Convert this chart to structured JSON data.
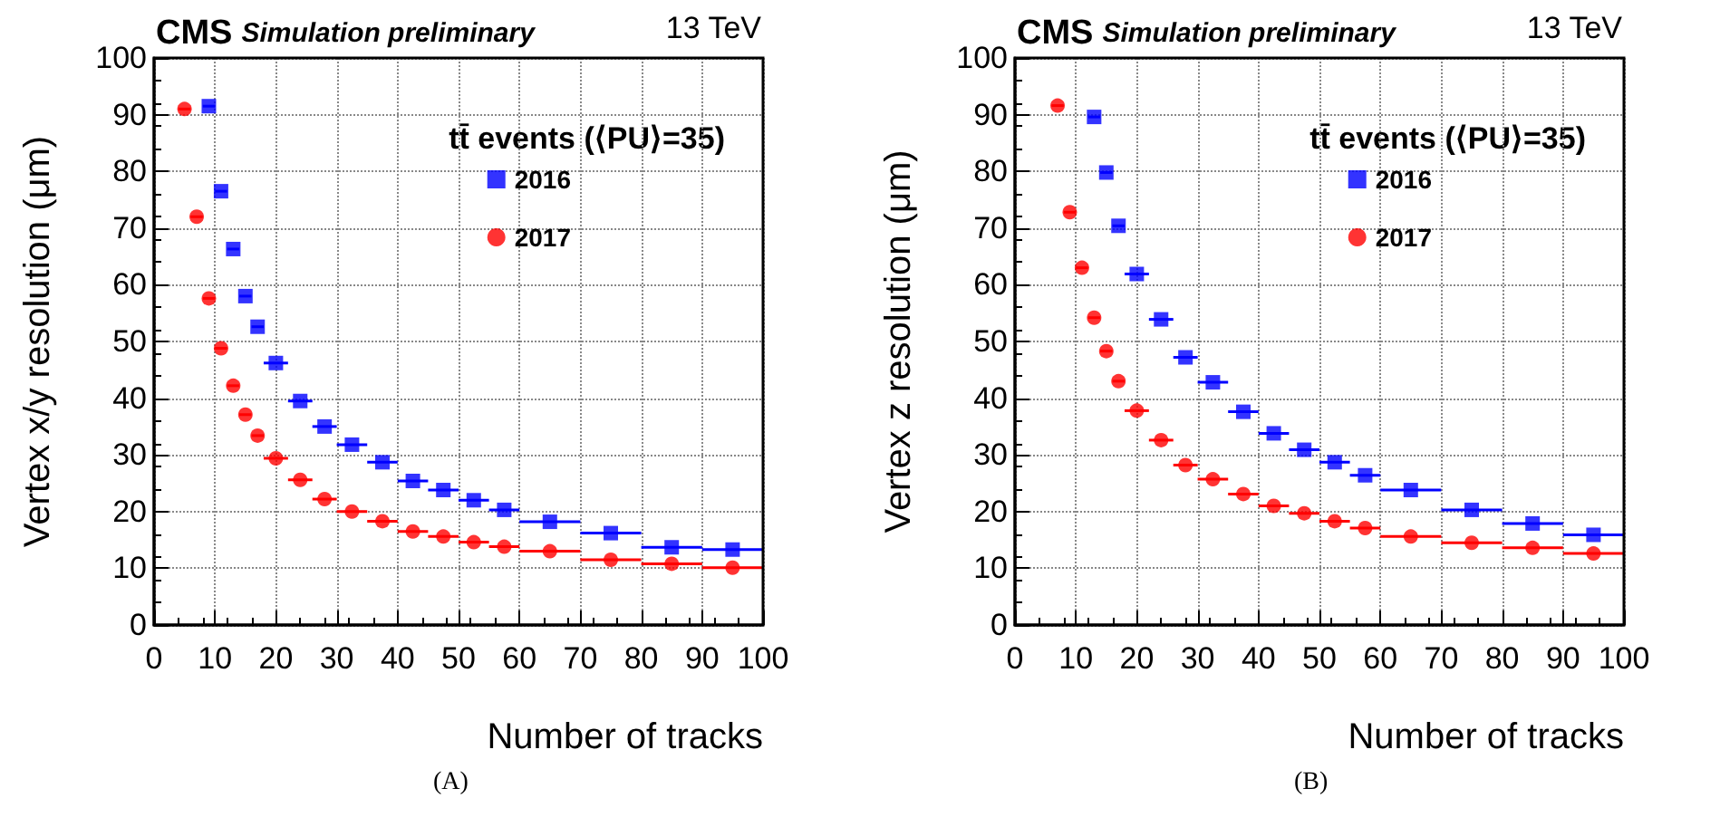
{
  "chart_data": [
    {
      "type": "scatter",
      "title": "CMS",
      "subtitle": "Simulation preliminary",
      "xlabel": "Number of tracks",
      "ylabel": "Vertex x/y resolution (μm)",
      "annotations": [
        "13 TeV",
        "tt̄ events (⟨PU⟩=35)",
        "(A)"
      ],
      "xlim": [
        0,
        100
      ],
      "xticks": [
        0,
        10,
        20,
        30,
        40,
        50,
        60,
        70,
        80,
        90,
        100
      ],
      "ylim": [
        0,
        100
      ],
      "yticks": [
        0,
        10,
        20,
        30,
        40,
        50,
        60,
        70,
        80,
        90,
        100
      ],
      "grid": true,
      "legend": "top right",
      "series": [
        {
          "name": "2016",
          "color": "#0000ff",
          "marker": "square",
          "x": [
            9,
            11,
            13,
            15,
            17,
            20,
            24,
            28,
            32.5,
            37.5,
            42.5,
            47.5,
            52.5,
            57.5,
            65,
            75,
            85,
            95
          ],
          "values": [
            91.5,
            76.5,
            66.3,
            58,
            52.6,
            46.2,
            39.5,
            35,
            31.8,
            28.7,
            25.4,
            23.8,
            22,
            20.3,
            18.2,
            16.2,
            13.7,
            13.3
          ],
          "xerrors": [
            1,
            1,
            1,
            1,
            1,
            2,
            2,
            2,
            2.5,
            2.5,
            2.5,
            2.5,
            2.5,
            2.5,
            5,
            5,
            5,
            5
          ]
        },
        {
          "name": "2017",
          "color": "#ff0000",
          "marker": "circle",
          "x": [
            5,
            7,
            9,
            11,
            13,
            15,
            17,
            20,
            24,
            28,
            32.5,
            37.5,
            42.5,
            47.5,
            52.5,
            57.5,
            65,
            75,
            85,
            95
          ],
          "values": [
            91,
            72,
            57.6,
            48.8,
            42.2,
            37.1,
            33.4,
            29.4,
            25.6,
            22.2,
            20,
            18.3,
            16.5,
            15.6,
            14.6,
            13.8,
            13,
            11.5,
            10.8,
            10.1
          ],
          "xerrors": [
            1,
            1,
            1,
            1,
            1,
            1,
            1,
            2,
            2,
            2,
            2.5,
            2.5,
            2.5,
            2.5,
            2.5,
            2.5,
            5,
            5,
            5,
            5
          ]
        }
      ]
    },
    {
      "type": "scatter",
      "title": "CMS",
      "subtitle": "Simulation preliminary",
      "xlabel": "Number of tracks",
      "ylabel": "Vertex z resolution (μm)",
      "annotations": [
        "13 TeV",
        "tt̄ events (⟨PU⟩=35)",
        "(B)"
      ],
      "xlim": [
        0,
        100
      ],
      "xticks": [
        0,
        10,
        20,
        30,
        40,
        50,
        60,
        70,
        80,
        90,
        100
      ],
      "ylim": [
        0,
        100
      ],
      "yticks": [
        0,
        10,
        20,
        30,
        40,
        50,
        60,
        70,
        80,
        90,
        100
      ],
      "grid": true,
      "legend": "top right",
      "series": [
        {
          "name": "2016",
          "color": "#0000ff",
          "marker": "square",
          "x": [
            13,
            15,
            17,
            20,
            24,
            28,
            32.5,
            37.5,
            42.5,
            47.5,
            52.5,
            57.5,
            65,
            75,
            85,
            95
          ],
          "values": [
            89.6,
            79.8,
            70.4,
            61.9,
            53.9,
            47.2,
            42.8,
            37.6,
            33.8,
            30.9,
            28.7,
            26.4,
            23.8,
            20.3,
            17.9,
            15.9
          ],
          "xerrors": [
            1,
            1,
            1,
            2,
            2,
            2,
            2.5,
            2.5,
            2.5,
            2.5,
            2.5,
            2.5,
            5,
            5,
            5,
            5
          ]
        },
        {
          "name": "2017",
          "color": "#ff0000",
          "marker": "circle",
          "x": [
            7,
            9,
            11,
            13,
            15,
            17,
            20,
            24,
            28,
            32.5,
            37.5,
            42.5,
            47.5,
            52.5,
            57.5,
            65,
            75,
            85,
            95
          ],
          "values": [
            91.6,
            72.8,
            63,
            54.2,
            48.3,
            43,
            37.8,
            32.6,
            28.2,
            25.7,
            23.1,
            21,
            19.7,
            18.3,
            17.1,
            15.6,
            14.5,
            13.6,
            12.6
          ],
          "xerrors": [
            1,
            1,
            1,
            1,
            1,
            1,
            2,
            2,
            2,
            2.5,
            2.5,
            2.5,
            2.5,
            2.5,
            2.5,
            5,
            5,
            5,
            5
          ]
        }
      ]
    }
  ]
}
